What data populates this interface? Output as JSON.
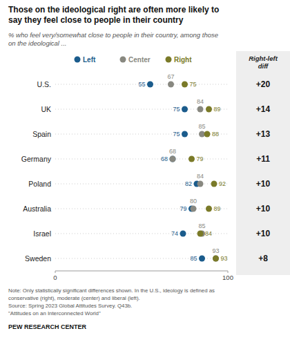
{
  "chart_data": {
    "type": "dot",
    "title": "Those on the ideological right are often more likely to\nsay they feel close to people in their country",
    "subtitle": "% who feel very/somewhat close to people in their country, among those\non the ideological ...",
    "categories": [
      "U.S.",
      "UK",
      "Spain",
      "Germany",
      "Poland",
      "Australia",
      "Israel",
      "Sweden"
    ],
    "series": [
      {
        "name": "Left",
        "color": "#1B5C8C",
        "values": [
          55,
          75,
          75,
          68,
          82,
          79,
          74,
          85
        ]
      },
      {
        "name": "Center",
        "color": "#888880",
        "values": [
          67,
          84,
          85,
          68,
          84,
          80,
          85,
          93
        ]
      },
      {
        "name": "Right",
        "color": "#7A7A28",
        "values": [
          75,
          89,
          88,
          79,
          92,
          89,
          84,
          93
        ]
      }
    ],
    "xlim": [
      0,
      100
    ],
    "xticks": [
      0,
      100
    ],
    "data_labels": true,
    "diff_title": "Right-left\ndiff",
    "diff_labels": [
      "+20",
      "+14",
      "+13",
      "+11",
      "+10",
      "+10",
      "+10",
      "+8"
    ],
    "notes": [
      "Note: Only statistically significant differences shown. In the U.S., ideology is defined as",
      "conservative (right), moderate (center) and liberal (left).",
      "Source: Spring 2023 Global Attitudes Survey. Q43b.",
      "\"Attitudes on an Interconnected World\""
    ],
    "source": "PEW RESEARCH CENTER"
  }
}
